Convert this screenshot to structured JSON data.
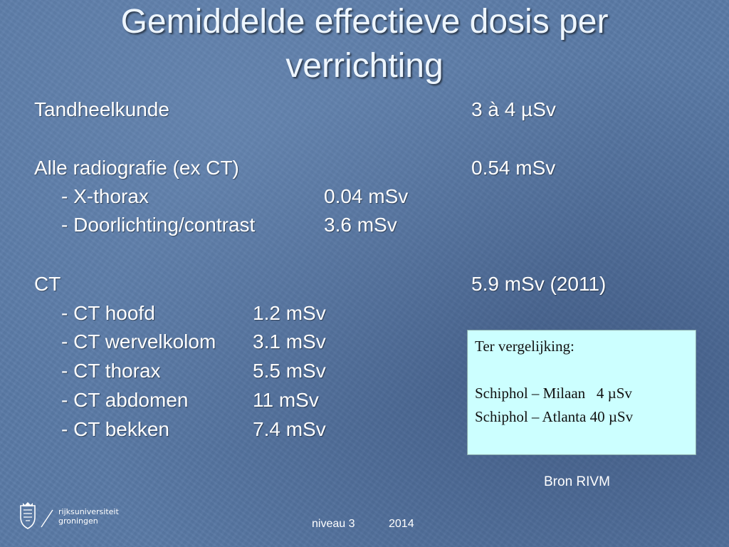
{
  "title": {
    "line1": "Gemiddelde effectieve dosis per",
    "line2": "verrichting"
  },
  "rows": {
    "tandheelkunde": {
      "label": "Tandheelkunde",
      "value": "3 à 4 µSv"
    },
    "radiografie": {
      "label": "Alle radiografie (ex CT)",
      "value": "0.54 mSv"
    },
    "xthorax": {
      "label": "- X-thorax",
      "value": "0.04 mSv"
    },
    "doorlichting": {
      "label": "- Doorlichting/contrast",
      "value": "3.6 mSv"
    },
    "ct": {
      "label": "CT",
      "value": "5.9 mSv (2011)"
    },
    "ct_hoofd": {
      "label": "- CT hoofd",
      "value": "1.2 mSv"
    },
    "ct_wervelkolom": {
      "label": "- CT wervelkolom",
      "value": "3.1 mSv"
    },
    "ct_thorax": {
      "label": "- CT thorax",
      "value": "5.5 mSv"
    },
    "ct_abdomen": {
      "label": "- CT abdomen",
      "value": "11 mSv"
    },
    "ct_bekken": {
      "label": "- CT bekken",
      "value": "7.4 mSv"
    }
  },
  "comparison": {
    "heading": "Ter vergelijking:",
    "line1": "Schiphol – Milaan   4 µSv",
    "line2": "Schiphol – Atlanta 40 µSv"
  },
  "source": "Bron RIVM",
  "footer": {
    "level": "niveau 3",
    "year": "2014"
  },
  "logo": {
    "line1": "rijksuniversiteit",
    "line2": "groningen",
    "icon": "university-crest-icon"
  },
  "colors": {
    "background": "#5a7aa6",
    "title": "#eef6ff",
    "box": "#ccffff"
  }
}
